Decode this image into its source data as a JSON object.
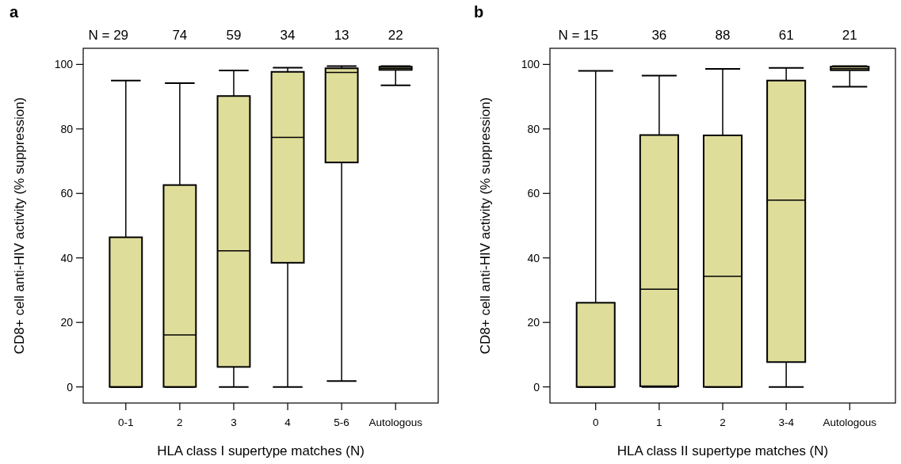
{
  "chart_data": [
    {
      "type": "box",
      "title": "a",
      "xlabel": "HLA class I supertype matches (N)",
      "ylabel": "CD8+ cell anti-HIV activity (% suppression)",
      "categories": [
        "0-1",
        "2",
        "3",
        "4",
        "5-6",
        "Autologous"
      ],
      "ylim": [
        -5,
        105
      ],
      "yticks": [
        0,
        20,
        40,
        60,
        80,
        100
      ],
      "annotations": [
        "N = 29",
        "74",
        "59",
        "34",
        "13",
        "22"
      ],
      "series": [
        {
          "color": "#dfdd9a",
          "boxes": [
            {
              "low": 0,
              "q1": 0,
              "median": 0,
              "q3": 46.4,
              "high": 95
            },
            {
              "low": 0,
              "q1": 0,
              "median": 16.1,
              "q3": 62.6,
              "high": 94.2
            },
            {
              "low": 0,
              "q1": 6.2,
              "median": 42.2,
              "q3": 90.2,
              "high": 98.1
            },
            {
              "low": 0,
              "q1": 38.5,
              "median": 77.4,
              "q3": 97.7,
              "high": 99
            },
            {
              "low": 1.8,
              "q1": 69.6,
              "median": 97.5,
              "q3": 98.8,
              "high": 99.5
            },
            {
              "low": 93.5,
              "q1": 98.3,
              "median": 98.8,
              "q3": 99.3,
              "high": 99.5
            }
          ]
        }
      ]
    },
    {
      "type": "box",
      "title": "b",
      "xlabel": "HLA class II supertype matches (N)",
      "ylabel": "CD8+ cell anti-HIV activity (% suppression)",
      "categories": [
        "0",
        "1",
        "2",
        "3-4",
        "Autologous"
      ],
      "ylim": [
        -5,
        105
      ],
      "yticks": [
        0,
        20,
        40,
        60,
        80,
        100
      ],
      "annotations": [
        "N = 15",
        "36",
        "88",
        "61",
        "21"
      ],
      "series": [
        {
          "color": "#dfdd9a",
          "boxes": [
            {
              "low": 0,
              "q1": 0,
              "median": 0,
              "q3": 26.1,
              "high": 98
            },
            {
              "low": 0,
              "q1": 0.2,
              "median": 30.3,
              "q3": 78.1,
              "high": 96.5
            },
            {
              "low": 0,
              "q1": 0,
              "median": 34.3,
              "q3": 78,
              "high": 98.6
            },
            {
              "low": 0,
              "q1": 7.7,
              "median": 57.9,
              "q3": 95,
              "high": 98.9
            },
            {
              "low": 93.1,
              "q1": 98.2,
              "median": 98.7,
              "q3": 99.3,
              "high": 99.5
            }
          ]
        }
      ]
    }
  ]
}
